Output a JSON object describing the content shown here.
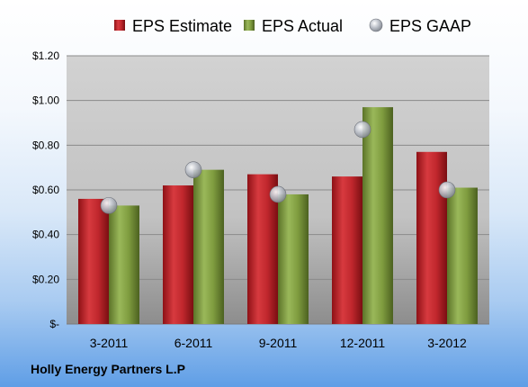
{
  "chart_data": {
    "type": "bar",
    "categories": [
      "3-2011",
      "6-2011",
      "9-2011",
      "12-2011",
      "3-2012"
    ],
    "series": [
      {
        "name": "EPS Estimate",
        "kind": "bar",
        "color": "#c0272d",
        "values": [
          0.56,
          0.62,
          0.67,
          0.66,
          0.77
        ]
      },
      {
        "name": "EPS Actual",
        "kind": "bar",
        "color": "#7f9c3f",
        "values": [
          0.53,
          0.69,
          0.58,
          0.97,
          0.61
        ]
      },
      {
        "name": "EPS GAAP",
        "kind": "marker",
        "color": "#b8bcc4",
        "values": [
          0.53,
          0.69,
          0.58,
          0.87,
          0.6
        ]
      }
    ],
    "ylim": [
      0,
      1.2
    ],
    "yticks": [
      0,
      0.2,
      0.4,
      0.6,
      0.8,
      1.0,
      1.2
    ],
    "ytick_labels": [
      "$-",
      "$0.20",
      "$0.40",
      "$0.60",
      "$0.80",
      "$1.00",
      "$1.20"
    ],
    "grid": true,
    "legend_position": "top"
  },
  "footer": {
    "company": "Holly Energy Partners L.P"
  }
}
